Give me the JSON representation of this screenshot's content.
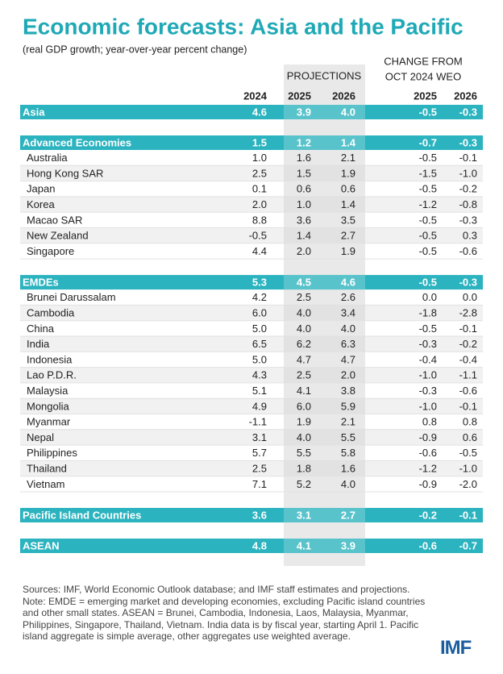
{
  "header": {
    "title": "Economic forecasts: Asia and the Pacific",
    "subtitle": "(real GDP growth; year-over-year percent change)"
  },
  "table": {
    "projections_label": "PROJECTIONS",
    "change_label": [
      "CHANGE FROM",
      "OCT 2024 WEO"
    ],
    "columns": [
      "2024",
      "2025",
      "2026",
      "2025",
      "2026"
    ],
    "groups": [
      {
        "name": "Asia",
        "values": [
          "4.6",
          "3.9",
          "4.0",
          "-0.5",
          "-0.3"
        ],
        "rows": []
      },
      {
        "name": "Advanced Economies",
        "values": [
          "1.5",
          "1.2",
          "1.4",
          "-0.7",
          "-0.3"
        ],
        "rows": [
          {
            "name": "Australia",
            "values": [
              "1.0",
              "1.6",
              "2.1",
              "-0.5",
              "-0.1"
            ]
          },
          {
            "name": "Hong Kong SAR",
            "values": [
              "2.5",
              "1.5",
              "1.9",
              "-1.5",
              "-1.0"
            ]
          },
          {
            "name": "Japan",
            "values": [
              "0.1",
              "0.6",
              "0.6",
              "-0.5",
              "-0.2"
            ]
          },
          {
            "name": "Korea",
            "values": [
              "2.0",
              "1.0",
              "1.4",
              "-1.2",
              "-0.8"
            ]
          },
          {
            "name": "Macao SAR",
            "values": [
              "8.8",
              "3.6",
              "3.5",
              "-0.5",
              "-0.3"
            ]
          },
          {
            "name": "New Zealand",
            "values": [
              "-0.5",
              "1.4",
              "2.7",
              "-0.5",
              "0.3"
            ]
          },
          {
            "name": "Singapore",
            "values": [
              "4.4",
              "2.0",
              "1.9",
              "-0.5",
              "-0.6"
            ]
          }
        ]
      },
      {
        "name": "EMDEs",
        "values": [
          "5.3",
          "4.5",
          "4.6",
          "-0.5",
          "-0.3"
        ],
        "rows": [
          {
            "name": "Brunei Darussalam",
            "values": [
              "4.2",
              "2.5",
              "2.6",
              "0.0",
              "0.0"
            ]
          },
          {
            "name": "Cambodia",
            "values": [
              "6.0",
              "4.0",
              "3.4",
              "-1.8",
              "-2.8"
            ]
          },
          {
            "name": "China",
            "values": [
              "5.0",
              "4.0",
              "4.0",
              "-0.5",
              "-0.1"
            ]
          },
          {
            "name": "India",
            "values": [
              "6.5",
              "6.2",
              "6.3",
              "-0.3",
              "-0.2"
            ]
          },
          {
            "name": "Indonesia",
            "values": [
              "5.0",
              "4.7",
              "4.7",
              "-0.4",
              "-0.4"
            ]
          },
          {
            "name": "Lao P.D.R.",
            "values": [
              "4.3",
              "2.5",
              "2.0",
              "-1.0",
              "-1.1"
            ]
          },
          {
            "name": "Malaysia",
            "values": [
              "5.1",
              "4.1",
              "3.8",
              "-0.3",
              "-0.6"
            ]
          },
          {
            "name": "Mongolia",
            "values": [
              "4.9",
              "6.0",
              "5.9",
              "-1.0",
              "-0.1"
            ]
          },
          {
            "name": "Myanmar",
            "values": [
              "-1.1",
              "1.9",
              "2.1",
              "0.8",
              "0.8"
            ]
          },
          {
            "name": "Nepal",
            "values": [
              "3.1",
              "4.0",
              "5.5",
              "-0.9",
              "0.6"
            ]
          },
          {
            "name": "Philippines",
            "values": [
              "5.7",
              "5.5",
              "5.8",
              "-0.6",
              "-0.5"
            ]
          },
          {
            "name": "Thailand",
            "values": [
              "2.5",
              "1.8",
              "1.6",
              "-1.2",
              "-1.0"
            ]
          },
          {
            "name": "Vietnam",
            "values": [
              "7.1",
              "5.2",
              "4.0",
              "-0.9",
              "-2.0"
            ]
          }
        ]
      },
      {
        "name": "Pacific Island Countries",
        "values": [
          "3.6",
          "3.1",
          "2.7",
          "-0.2",
          "-0.1"
        ],
        "rows": []
      },
      {
        "name": "ASEAN",
        "values": [
          "4.8",
          "4.1",
          "3.9",
          "-0.6",
          "-0.7"
        ],
        "rows": []
      }
    ]
  },
  "footer": {
    "note": "Sources: IMF, World Economic Outlook database; and IMF staff estimates and projections. Note: EMDE = emerging market and developing economies, excluding Pacific island countries and other small states. ASEAN = Brunei, Cambodia, Indonesia, Laos, Malaysia, Myanmar, Philippines, Singapore, Thailand, Vietnam. India data is by fiscal year, starting April 1. Pacific island aggregate is simple average, other aggregates use weighted average.",
    "logo": "IMF"
  }
}
